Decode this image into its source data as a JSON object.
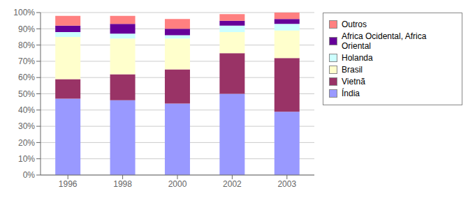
{
  "chart_data": {
    "type": "bar",
    "stacked": true,
    "categories": [
      "1996",
      "1998",
      "2000",
      "2002",
      "2003"
    ],
    "series": [
      {
        "name": "Índia",
        "color": "#9999FF",
        "values": [
          47,
          46,
          44,
          50,
          39
        ]
      },
      {
        "name": "Vietnã",
        "color": "#993366",
        "values": [
          12,
          16,
          21,
          25,
          33
        ]
      },
      {
        "name": "Brasil",
        "color": "#FFFFCC",
        "values": [
          26,
          22,
          19,
          13,
          17
        ]
      },
      {
        "name": "Holanda",
        "color": "#CCFFFF",
        "values": [
          3,
          3,
          2,
          4,
          4
        ]
      },
      {
        "name": "Africa Ocidental, Africa Oriental",
        "color": "#660099",
        "values": [
          4,
          6,
          4,
          3,
          3
        ]
      },
      {
        "name": "Outros",
        "color": "#FF8080",
        "values": [
          6,
          5,
          6,
          4,
          4
        ]
      }
    ],
    "ylim": [
      0,
      100
    ],
    "yticks": [
      {
        "value": 0,
        "label": "0%"
      },
      {
        "value": 10,
        "label": "10%"
      },
      {
        "value": 20,
        "label": "20%"
      },
      {
        "value": 30,
        "label": "30%"
      },
      {
        "value": 40,
        "label": "40%"
      },
      {
        "value": 50,
        "label": "50%"
      },
      {
        "value": 60,
        "label": "60%"
      },
      {
        "value": 70,
        "label": "70%"
      },
      {
        "value": 80,
        "label": "80%"
      },
      {
        "value": 90,
        "label": "90%"
      },
      {
        "value": 100,
        "label": "100%"
      }
    ],
    "grid": true,
    "legend": "right"
  }
}
